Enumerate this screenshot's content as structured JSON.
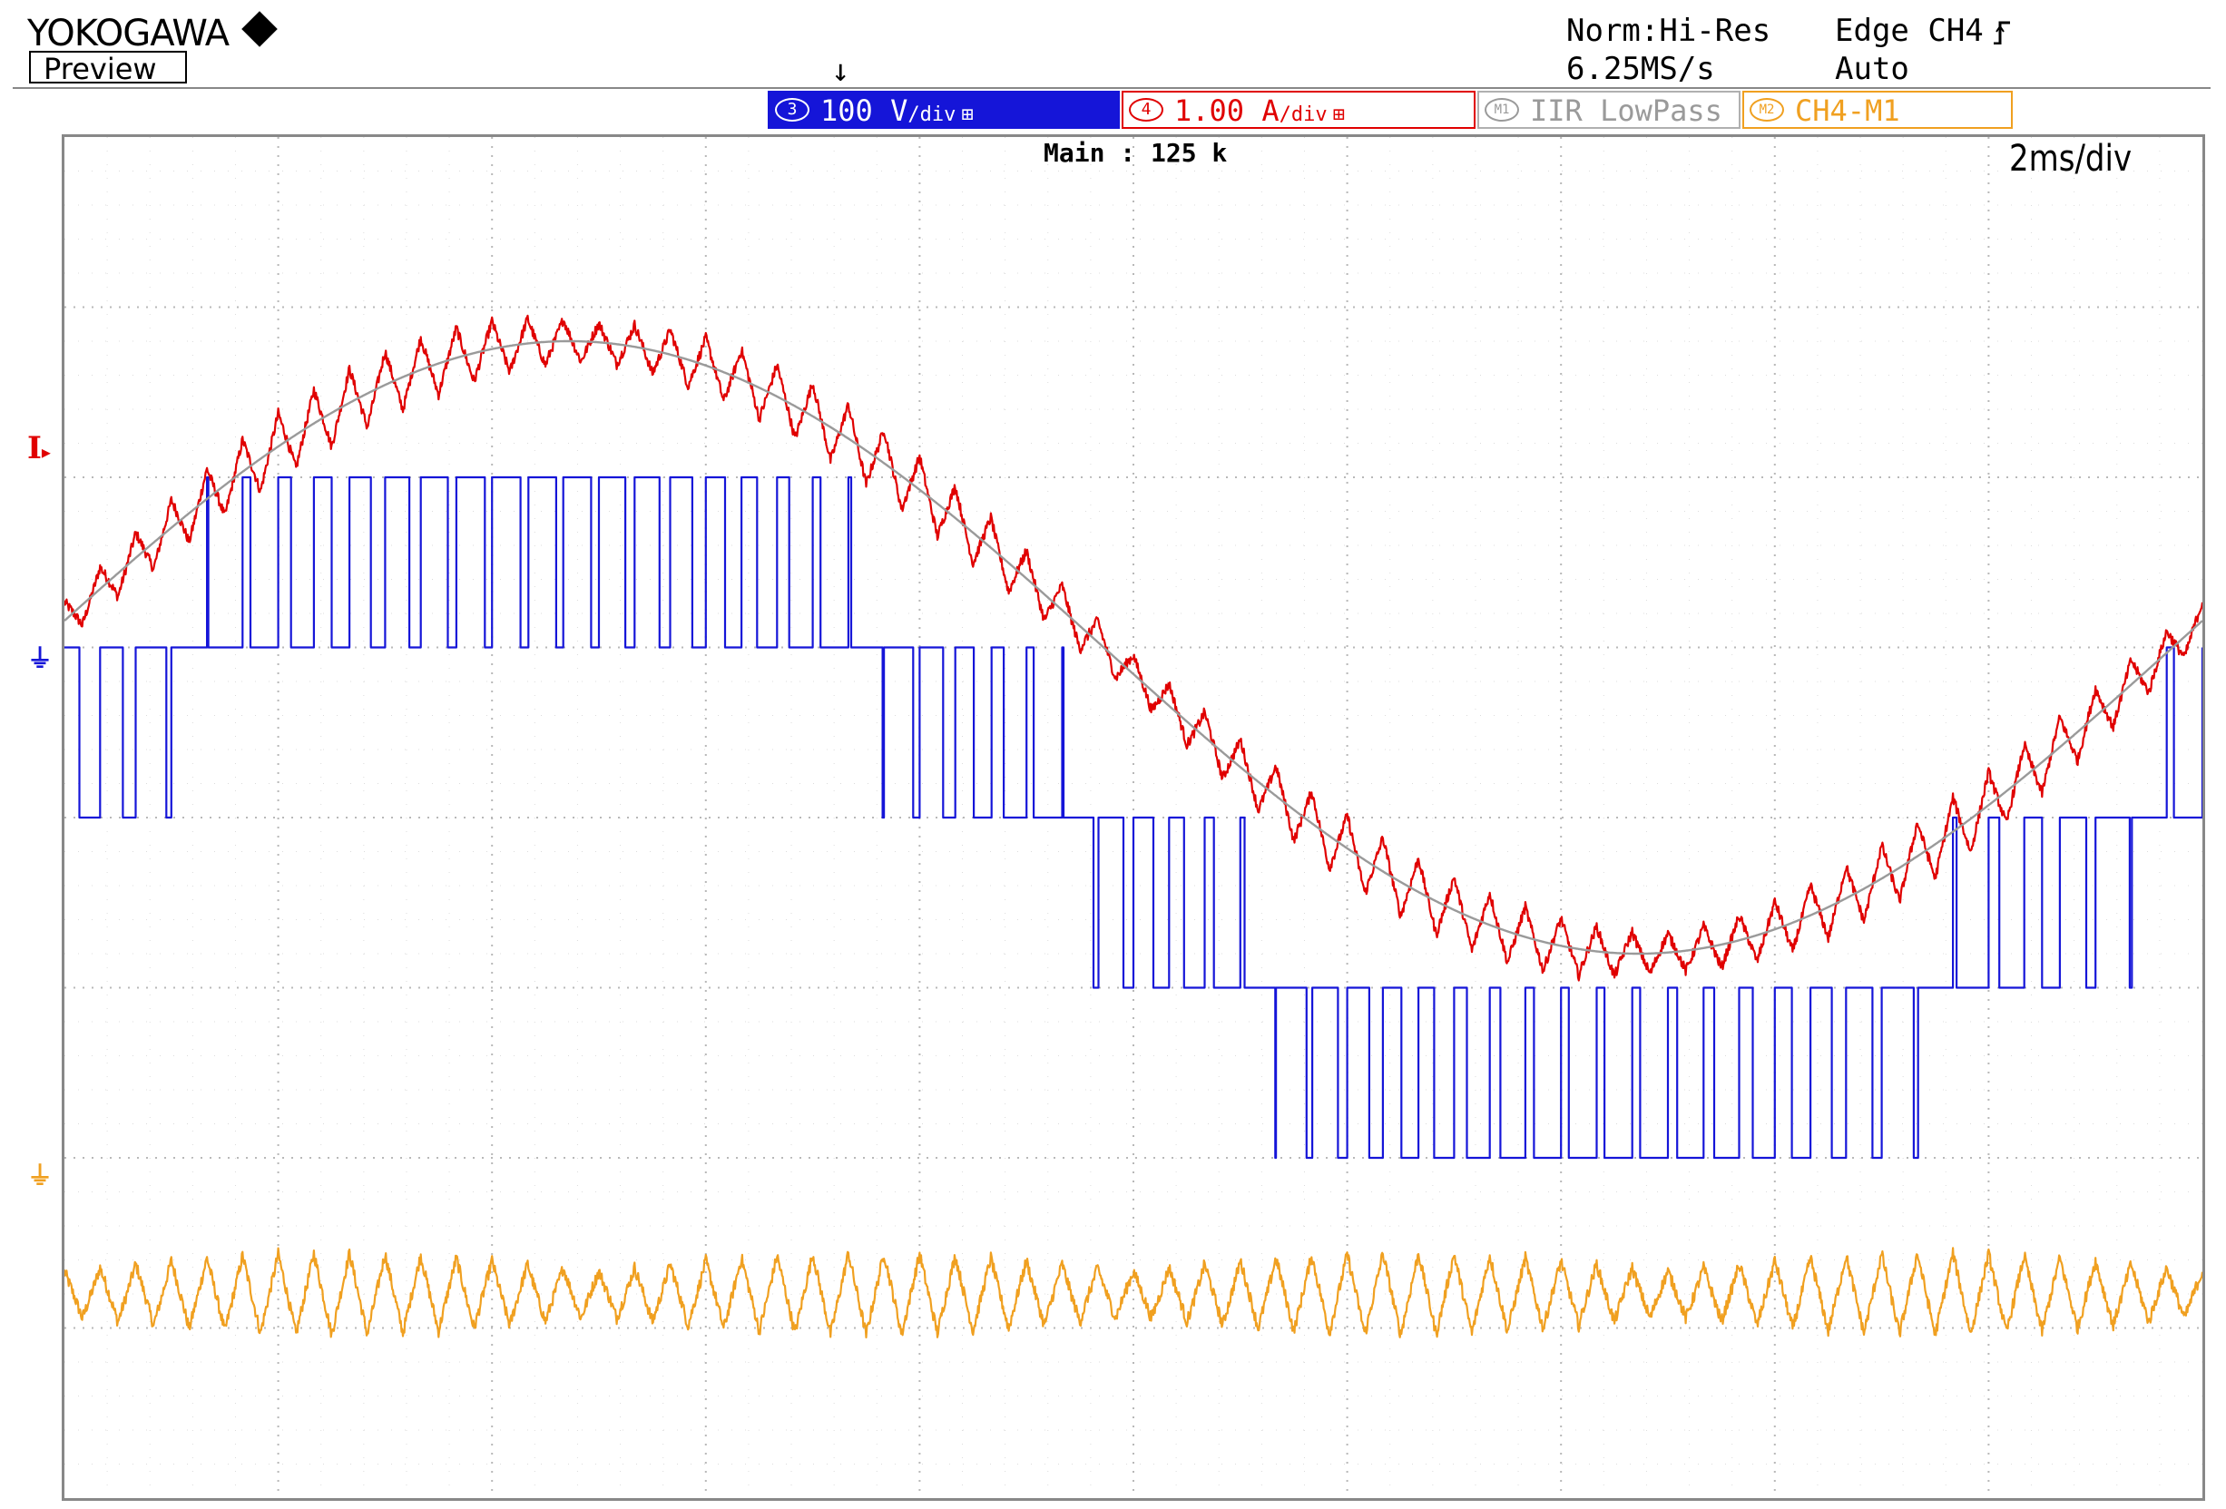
{
  "header": {
    "brand": "YOKOGAWA",
    "preview_label": "Preview",
    "acquisition_mode": "Norm:Hi-Res",
    "sample_rate": "6.25MS/s",
    "trigger_type": "Edge CH4",
    "trigger_mode": "Auto"
  },
  "channels": {
    "ch3": {
      "number": "3",
      "label": "100 V",
      "unit": "/div",
      "color": "#1515d8"
    },
    "ch4": {
      "number": "4",
      "label": "1.00 A",
      "unit": "/div",
      "color": "#e00000"
    },
    "m1": {
      "number": "M1",
      "label": "IIR LowPass",
      "color": "#9a9a9a"
    },
    "m2": {
      "number": "M2",
      "label": "CH4-M1",
      "color": "#f0a020"
    }
  },
  "display": {
    "record_label": "Main : 125 k",
    "timebase": "2ms/div",
    "trigger_level_marker": "I",
    "grid_color": "#b8b8b8"
  },
  "chart_data": {
    "type": "line",
    "title": "",
    "xlabel": "",
    "ylabel": "",
    "x_unit": "ms",
    "xlim": [
      0,
      20
    ],
    "ylim_div": [
      -4,
      4
    ],
    "grid": true,
    "divisions": {
      "x": 10,
      "y": 8
    },
    "series": [
      {
        "name": "CH3",
        "kind": "multilevel-pwm-voltage",
        "color": "#1515d8",
        "offset_div": 1.0,
        "levels_div": [
          -3,
          -2,
          -1,
          0,
          1
        ],
        "carrier_cycles": 60
      },
      {
        "name": "CH4",
        "kind": "current",
        "color": "#e00000",
        "offset_div": 1.0,
        "fundamental_amplitude_div": 1.8,
        "fundamental_phase_deg": 5,
        "ripple_amplitude_div": 0.2,
        "ripple_cycles": 60
      },
      {
        "name": "M1",
        "kind": "IIR LowPass(CH4)",
        "color": "#9a9a9a",
        "offset_div": 1.0,
        "amplitude_div": 1.8,
        "phase_deg": 5
      },
      {
        "name": "M2",
        "kind": "CH4-M1",
        "color": "#f0a020",
        "offset_div": -2.8,
        "ripple_amplitude_div": 0.25,
        "ripple_cycles": 60
      }
    ]
  }
}
